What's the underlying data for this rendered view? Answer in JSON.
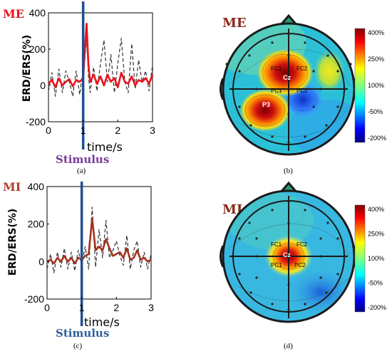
{
  "figure": {
    "panels": [
      {
        "id": "a",
        "caption": "(a)",
        "condition_label": "ME",
        "ylabel": "ERD/ERS(%)",
        "xlabel": "time/s",
        "stimulus_label": "Stimulus",
        "stimulus_time": 1.0
      },
      {
        "id": "b",
        "caption": "(b)",
        "condition_label": "ME",
        "electrodes": [
          "FC1",
          "FC2",
          "Cz",
          "PC1",
          "PC2",
          "P3"
        ],
        "colorbar_ticks": [
          "400%",
          "250%",
          "100%",
          "-50%",
          "-200%"
        ]
      },
      {
        "id": "c",
        "caption": "(c)",
        "condition_label": "MI",
        "ylabel": "ERD/ERS(%)",
        "xlabel": "time/s",
        "stimulus_label": "Stimulus",
        "stimulus_time": 1.0
      },
      {
        "id": "d",
        "caption": "(d)",
        "condition_label": "MI",
        "electrodes": [
          "FC1",
          "FC2",
          "Cz",
          "PC1",
          "PC2"
        ],
        "colorbar_ticks": [
          "400%",
          "250%",
          "100%",
          "-50%",
          "-200%"
        ]
      }
    ]
  },
  "chart_data": [
    {
      "type": "line",
      "panel": "a",
      "xlabel": "time/s",
      "ylabel": "ERD/ERS(%)",
      "xlim": [
        0,
        3
      ],
      "ylim": [
        -200,
        400
      ],
      "x_ticks": [
        "0",
        "1",
        "2",
        "3"
      ],
      "y_ticks": [
        "-200",
        "0",
        "200",
        "400"
      ],
      "series": [
        {
          "style": "solid",
          "color": "#e8141e",
          "x": [
            0,
            0.1,
            0.2,
            0.3,
            0.4,
            0.5,
            0.6,
            0.7,
            0.8,
            0.9,
            1.0,
            1.05,
            1.1,
            1.15,
            1.2,
            1.3,
            1.4,
            1.5,
            1.6,
            1.7,
            1.8,
            1.9,
            2.0,
            2.1,
            2.2,
            2.3,
            2.4,
            2.5,
            2.6,
            2.7,
            2.8,
            2.9,
            3.0
          ],
          "y": [
            10,
            30,
            -10,
            40,
            0,
            20,
            35,
            -5,
            30,
            20,
            40,
            200,
            340,
            120,
            20,
            60,
            10,
            50,
            0,
            60,
            20,
            40,
            -10,
            70,
            20,
            10,
            50,
            0,
            30,
            20,
            40,
            10,
            60
          ]
        },
        {
          "style": "dashed",
          "color": "#333333",
          "x": [
            0,
            0.1,
            0.2,
            0.3,
            0.4,
            0.5,
            0.6,
            0.7,
            0.8,
            0.9,
            1.0,
            1.05,
            1.1,
            1.15,
            1.2,
            1.3,
            1.4,
            1.5,
            1.6,
            1.7,
            1.8,
            1.9,
            2.0,
            2.1,
            2.2,
            2.3,
            2.4,
            2.5,
            2.6,
            2.7,
            2.8,
            2.9,
            3.0
          ],
          "y": [
            -30,
            70,
            -60,
            90,
            -40,
            80,
            20,
            -60,
            80,
            -50,
            90,
            150,
            260,
            60,
            -40,
            100,
            -30,
            120,
            250,
            20,
            170,
            -40,
            120,
            260,
            20,
            -40,
            230,
            -20,
            140,
            20,
            80,
            -30,
            110
          ]
        }
      ]
    },
    {
      "type": "line",
      "panel": "c",
      "xlabel": "time/s",
      "ylabel": "ERD/ERS(%)",
      "xlim": [
        0,
        3
      ],
      "ylim": [
        -200,
        400
      ],
      "x_ticks": [
        "0",
        "1",
        "2",
        "3"
      ],
      "y_ticks": [
        "-200",
        "0",
        "200",
        "400"
      ],
      "series": [
        {
          "style": "solid",
          "color": "#a3321e",
          "x": [
            0,
            0.1,
            0.2,
            0.3,
            0.4,
            0.5,
            0.6,
            0.7,
            0.8,
            0.9,
            1.0,
            1.1,
            1.2,
            1.3,
            1.4,
            1.5,
            1.6,
            1.7,
            1.8,
            1.9,
            2.0,
            2.1,
            2.2,
            2.3,
            2.4,
            2.5,
            2.6,
            2.7,
            2.8,
            2.9,
            3.0
          ],
          "y": [
            0,
            10,
            -10,
            20,
            0,
            30,
            0,
            20,
            -10,
            20,
            10,
            30,
            40,
            230,
            60,
            80,
            60,
            120,
            70,
            30,
            40,
            50,
            20,
            70,
            10,
            20,
            60,
            10,
            20,
            0,
            10
          ]
        },
        {
          "style": "dashed",
          "color": "#333333",
          "x": [
            0,
            0.1,
            0.2,
            0.3,
            0.4,
            0.5,
            0.6,
            0.7,
            0.8,
            0.9,
            1.0,
            1.1,
            1.2,
            1.3,
            1.4,
            1.5,
            1.6,
            1.7,
            1.8,
            1.9,
            2.0,
            2.1,
            2.2,
            2.3,
            2.4,
            2.5,
            2.6,
            2.7,
            2.8,
            2.9,
            3.0
          ],
          "y": [
            -40,
            40,
            -60,
            50,
            -30,
            70,
            -40,
            50,
            -50,
            60,
            -20,
            80,
            -40,
            290,
            -30,
            170,
            20,
            220,
            20,
            60,
            110,
            30,
            -20,
            140,
            -40,
            60,
            110,
            -30,
            50,
            -40,
            40
          ]
        }
      ]
    }
  ]
}
